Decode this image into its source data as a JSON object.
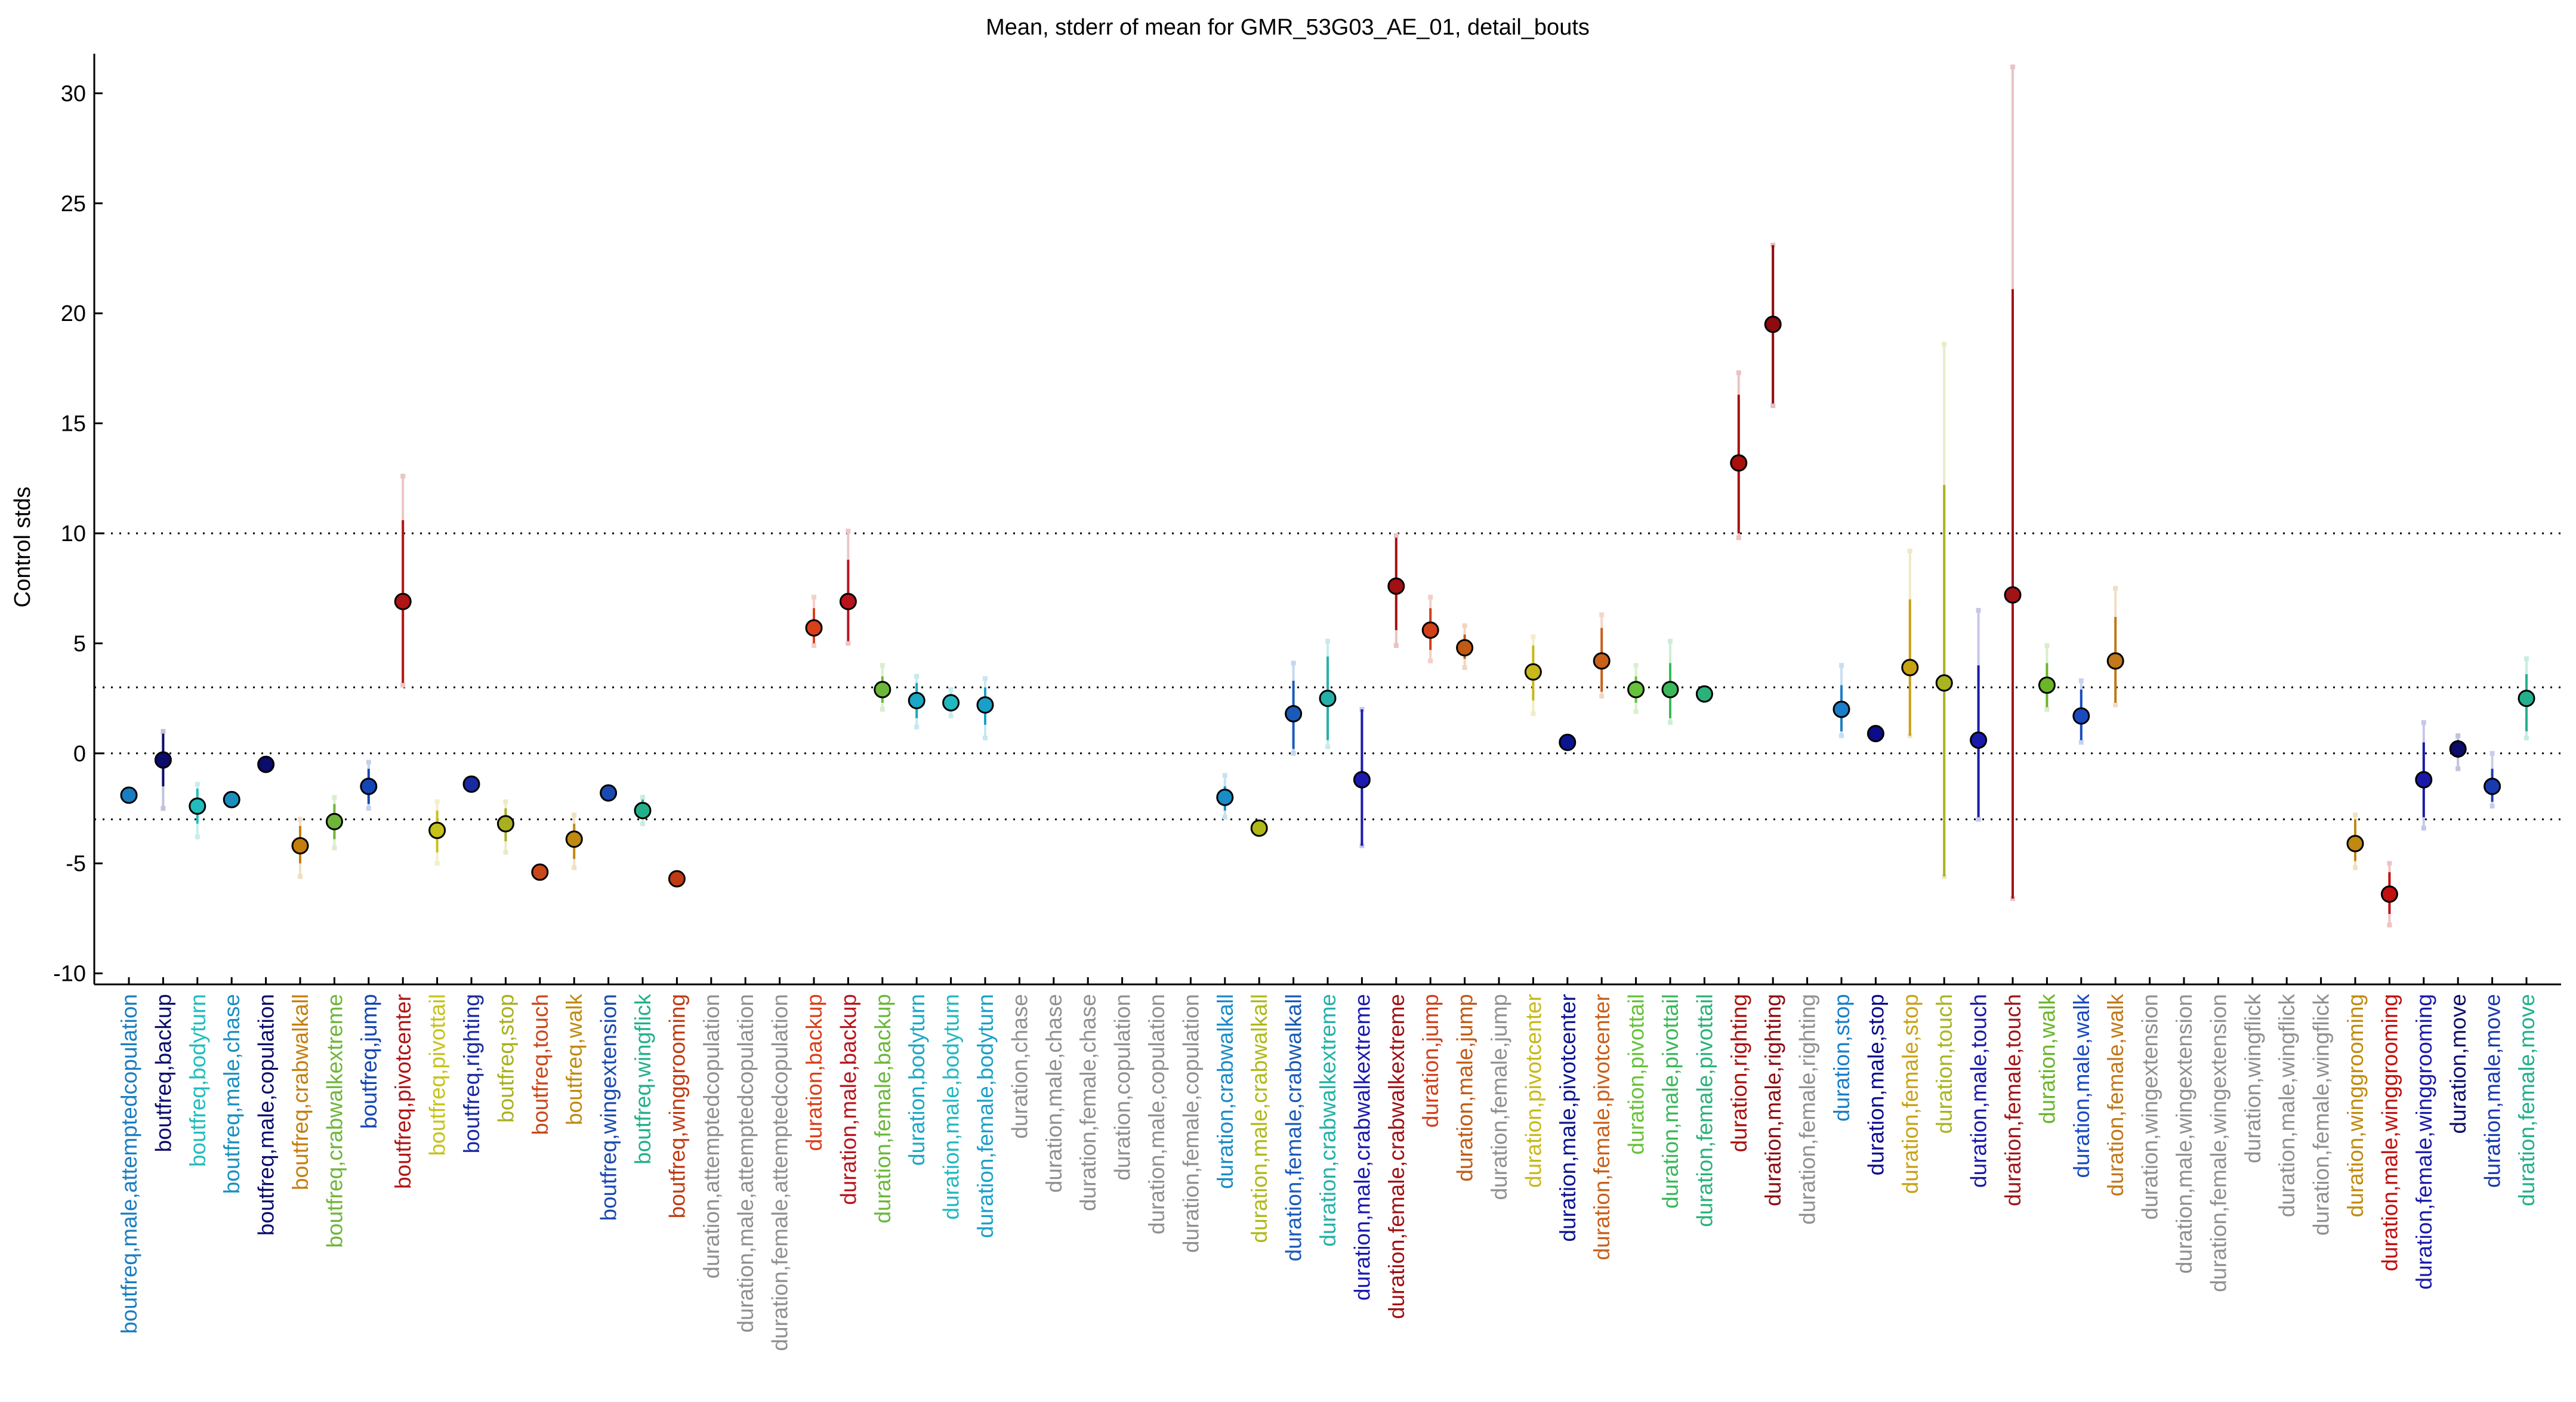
{
  "chart_data": {
    "type": "scatter",
    "title": "Mean, stderr of mean for GMR_53G03_AE_01, detail_bouts",
    "ylabel": "Control stds",
    "xlabel": "",
    "ylim": [
      -10.5,
      31.8
    ],
    "yticks": [
      -10,
      -5,
      0,
      5,
      10,
      15,
      20,
      25,
      30
    ],
    "reference_lines": [
      -3,
      0,
      3,
      10
    ],
    "grid": false,
    "points": [
      {
        "label": "boutfreq,male,attemptedcopulation",
        "color": "#1a7dc0",
        "mean": -1.9,
        "se_lo": -1.9,
        "se_hi": -1.9,
        "ci_lo": -1.9,
        "ci_hi": -1.9
      },
      {
        "label": "boutfreq,backup",
        "color": "#0b0c6b",
        "mean": -0.3,
        "se_lo": -1.5,
        "se_hi": 0.9,
        "ci_lo": -2.5,
        "ci_hi": 1.0
      },
      {
        "label": "boutfreq,bodyturn",
        "color": "#22bcbc",
        "mean": -2.4,
        "se_lo": -3.2,
        "se_hi": -1.6,
        "ci_lo": -3.8,
        "ci_hi": -1.4
      },
      {
        "label": "boutfreq,male,chase",
        "color": "#1a8fbf",
        "mean": -2.1,
        "se_lo": -2.1,
        "se_hi": -2.1,
        "ci_lo": -2.1,
        "ci_hi": -2.1
      },
      {
        "label": "boutfreq,male,copulation",
        "color": "#0b0c6b",
        "mean": -0.5,
        "se_lo": -0.5,
        "se_hi": -0.5,
        "ci_lo": -0.5,
        "ci_hi": -0.5
      },
      {
        "label": "boutfreq,crabwalkall",
        "color": "#c47e0e",
        "mean": -4.2,
        "se_lo": -5.0,
        "se_hi": -3.3,
        "ci_lo": -5.6,
        "ci_hi": -3.0
      },
      {
        "label": "boutfreq,crabwalkextreme",
        "color": "#6fb53a",
        "mean": -3.1,
        "se_lo": -3.9,
        "se_hi": -2.3,
        "ci_lo": -4.3,
        "ci_hi": -2.0
      },
      {
        "label": "boutfreq,jump",
        "color": "#1346b4",
        "mean": -1.5,
        "se_lo": -2.3,
        "se_hi": -0.7,
        "ci_lo": -2.5,
        "ci_hi": -0.4
      },
      {
        "label": "boutfreq,pivotcenter",
        "color": "#b01414",
        "mean": 6.9,
        "se_lo": 3.2,
        "se_hi": 10.6,
        "ci_lo": 3.1,
        "ci_hi": 12.6
      },
      {
        "label": "boutfreq,pivottail",
        "color": "#c7c21a",
        "mean": -3.5,
        "se_lo": -4.5,
        "se_hi": -2.6,
        "ci_lo": -5.0,
        "ci_hi": -2.2
      },
      {
        "label": "boutfreq,righting",
        "color": "#1a2aa0",
        "mean": -1.4,
        "se_lo": -1.4,
        "se_hi": -1.4,
        "ci_lo": -1.4,
        "ci_hi": -1.4
      },
      {
        "label": "boutfreq,stop",
        "color": "#a8b020",
        "mean": -3.2,
        "se_lo": -4.0,
        "se_hi": -2.5,
        "ci_lo": -4.5,
        "ci_hi": -2.2
      },
      {
        "label": "boutfreq,touch",
        "color": "#c8481a",
        "mean": -5.4,
        "se_lo": -5.4,
        "se_hi": -5.4,
        "ci_lo": -5.4,
        "ci_hi": -5.4
      },
      {
        "label": "boutfreq,walk",
        "color": "#c08a10",
        "mean": -3.9,
        "se_lo": -4.8,
        "se_hi": -3.2,
        "ci_lo": -5.2,
        "ci_hi": -2.8
      },
      {
        "label": "boutfreq,wingextension",
        "color": "#1a4ab0",
        "mean": -1.8,
        "se_lo": -1.8,
        "se_hi": -1.8,
        "ci_lo": -1.8,
        "ci_hi": -1.8
      },
      {
        "label": "boutfreq,wingflick",
        "color": "#22b08a",
        "mean": -2.6,
        "se_lo": -3.0,
        "se_hi": -2.1,
        "ci_lo": -3.2,
        "ci_hi": -2.0
      },
      {
        "label": "boutfreq,winggrooming",
        "color": "#c03a14",
        "mean": -5.7,
        "se_lo": -5.7,
        "se_hi": -5.7,
        "ci_lo": -5.7,
        "ci_hi": -5.7
      },
      {
        "label": "duration,attemptedcopulation",
        "color": "#909090"
      },
      {
        "label": "duration,male,attemptedcopulation",
        "color": "#909090"
      },
      {
        "label": "duration,female,attemptedcopulation",
        "color": "#909090"
      },
      {
        "label": "duration,backup",
        "color": "#d8401a",
        "mean": 5.7,
        "se_lo": 5.0,
        "se_hi": 6.6,
        "ci_lo": 4.9,
        "ci_hi": 7.1
      },
      {
        "label": "duration,male,backup",
        "color": "#b8141e",
        "mean": 6.9,
        "se_lo": 5.1,
        "se_hi": 8.8,
        "ci_lo": 5.0,
        "ci_hi": 10.1
      },
      {
        "label": "duration,female,backup",
        "color": "#6ab83a",
        "mean": 2.9,
        "se_lo": 2.3,
        "se_hi": 3.5,
        "ci_lo": 2.0,
        "ci_hi": 4.0
      },
      {
        "label": "duration,bodyturn",
        "color": "#1aa8c4",
        "mean": 2.4,
        "se_lo": 1.6,
        "se_hi": 3.2,
        "ci_lo": 1.2,
        "ci_hi": 3.5
      },
      {
        "label": "duration,male,bodyturn",
        "color": "#22b8c0",
        "mean": 2.3,
        "se_lo": 1.9,
        "se_hi": 2.7,
        "ci_lo": 1.7,
        "ci_hi": 2.9
      },
      {
        "label": "duration,female,bodyturn",
        "color": "#1aa0c8",
        "mean": 2.2,
        "se_lo": 1.3,
        "se_hi": 3.0,
        "ci_lo": 0.7,
        "ci_hi": 3.4
      },
      {
        "label": "duration,chase",
        "color": "#909090"
      },
      {
        "label": "duration,male,chase",
        "color": "#909090"
      },
      {
        "label": "duration,female,chase",
        "color": "#909090"
      },
      {
        "label": "duration,copulation",
        "color": "#909090"
      },
      {
        "label": "duration,male,copulation",
        "color": "#909090"
      },
      {
        "label": "duration,female,copulation",
        "color": "#909090"
      },
      {
        "label": "duration,crabwalkall",
        "color": "#1a8cc8",
        "mean": -2.0,
        "se_lo": -2.6,
        "se_hi": -1.5,
        "ci_lo": -2.9,
        "ci_hi": -1.0
      },
      {
        "label": "duration,male,crabwalkall",
        "color": "#b0b818",
        "mean": -3.4,
        "se_lo": -3.4,
        "se_hi": -3.4,
        "ci_lo": -3.4,
        "ci_hi": -3.4
      },
      {
        "label": "duration,female,crabwalkall",
        "color": "#1a5ab8",
        "mean": 1.8,
        "se_lo": 0.2,
        "se_hi": 3.3,
        "ci_lo": 0.0,
        "ci_hi": 4.1
      },
      {
        "label": "duration,crabwalkextreme",
        "color": "#22b0a8",
        "mean": 2.5,
        "se_lo": 0.6,
        "se_hi": 4.4,
        "ci_lo": 0.3,
        "ci_hi": 5.1
      },
      {
        "label": "duration,male,crabwalkextreme",
        "color": "#1a1ab0",
        "mean": -1.2,
        "se_lo": -4.2,
        "se_hi": 2.0,
        "ci_lo": -4.2,
        "ci_hi": 2.0
      },
      {
        "label": "duration,female,crabwalkextreme",
        "color": "#a01014",
        "mean": 7.6,
        "se_lo": 5.6,
        "se_hi": 9.8,
        "ci_lo": 4.9,
        "ci_hi": 9.9
      },
      {
        "label": "duration,jump",
        "color": "#d0401a",
        "mean": 5.6,
        "se_lo": 4.7,
        "se_hi": 6.6,
        "ci_lo": 4.2,
        "ci_hi": 7.1
      },
      {
        "label": "duration,male,jump",
        "color": "#c05a14",
        "mean": 4.8,
        "se_lo": 4.3,
        "se_hi": 5.4,
        "ci_lo": 3.9,
        "ci_hi": 5.8
      },
      {
        "label": "duration,female,jump",
        "color": "#909090"
      },
      {
        "label": "duration,pivotcenter",
        "color": "#c8b81a",
        "mean": 3.7,
        "se_lo": 2.4,
        "se_hi": 4.9,
        "ci_lo": 1.8,
        "ci_hi": 5.3
      },
      {
        "label": "duration,male,pivotcenter",
        "color": "#0c1490",
        "mean": 0.5,
        "se_lo": 0.5,
        "se_hi": 0.5,
        "ci_lo": 0.5,
        "ci_hi": 0.5
      },
      {
        "label": "duration,female,pivotcenter",
        "color": "#c8601a",
        "mean": 4.2,
        "se_lo": 2.8,
        "se_hi": 5.7,
        "ci_lo": 2.6,
        "ci_hi": 6.3
      },
      {
        "label": "duration,pivottail",
        "color": "#66c23a",
        "mean": 2.9,
        "se_lo": 2.3,
        "se_hi": 3.5,
        "ci_lo": 1.9,
        "ci_hi": 4.0
      },
      {
        "label": "duration,male,pivottail",
        "color": "#3ab85a",
        "mean": 2.9,
        "se_lo": 1.6,
        "se_hi": 4.1,
        "ci_lo": 1.4,
        "ci_hi": 5.1
      },
      {
        "label": "duration,female,pivottail",
        "color": "#2ab27a",
        "mean": 2.7,
        "se_lo": 2.7,
        "se_hi": 2.7,
        "ci_lo": 2.7,
        "ci_hi": 2.7
      },
      {
        "label": "duration,righting",
        "color": "#a8100e",
        "mean": 13.2,
        "se_lo": 10.0,
        "se_hi": 16.3,
        "ci_lo": 9.8,
        "ci_hi": 17.3
      },
      {
        "label": "duration,male,righting",
        "color": "#8c0c10",
        "mean": 19.5,
        "se_lo": 15.9,
        "se_hi": 23.1,
        "ci_lo": 15.8,
        "ci_hi": 23.1
      },
      {
        "label": "duration,female,righting",
        "color": "#909090"
      },
      {
        "label": "duration,stop",
        "color": "#1a7ec8",
        "mean": 2.0,
        "se_lo": 1.0,
        "se_hi": 3.1,
        "ci_lo": 0.8,
        "ci_hi": 4.0
      },
      {
        "label": "duration,male,stop",
        "color": "#0c0c8a",
        "mean": 0.9,
        "se_lo": 0.9,
        "se_hi": 0.9,
        "ci_lo": 0.9,
        "ci_hi": 0.9
      },
      {
        "label": "duration,female,stop",
        "color": "#c8a214",
        "mean": 3.9,
        "se_lo": 0.8,
        "se_hi": 7.0,
        "ci_lo": 0.8,
        "ci_hi": 9.2
      },
      {
        "label": "duration,touch",
        "color": "#a8b422",
        "mean": 3.2,
        "se_lo": -5.6,
        "se_hi": 12.2,
        "ci_lo": -5.6,
        "ci_hi": 18.6
      },
      {
        "label": "duration,male,touch",
        "color": "#1a1aa8",
        "mean": 0.6,
        "se_lo": -2.9,
        "se_hi": 4.0,
        "ci_lo": -3.0,
        "ci_hi": 6.5
      },
      {
        "label": "duration,female,touch",
        "color": "#a01418",
        "mean": 7.2,
        "se_lo": -6.6,
        "se_hi": 21.1,
        "ci_lo": -6.6,
        "ci_hi": 31.2
      },
      {
        "label": "duration,walk",
        "color": "#6ab62a",
        "mean": 3.1,
        "se_lo": 2.1,
        "se_hi": 4.1,
        "ci_lo": 2.0,
        "ci_hi": 4.9
      },
      {
        "label": "duration,male,walk",
        "color": "#1a4ac0",
        "mean": 1.7,
        "se_lo": 0.6,
        "se_hi": 2.9,
        "ci_lo": 0.5,
        "ci_hi": 3.3
      },
      {
        "label": "duration,female,walk",
        "color": "#c0781a",
        "mean": 4.2,
        "se_lo": 2.3,
        "se_hi": 6.2,
        "ci_lo": 2.2,
        "ci_hi": 7.5
      },
      {
        "label": "duration,wingextension",
        "color": "#909090"
      },
      {
        "label": "duration,male,wingextension",
        "color": "#909090"
      },
      {
        "label": "duration,female,wingextension",
        "color": "#909090"
      },
      {
        "label": "duration,wingflick",
        "color": "#909090"
      },
      {
        "label": "duration,male,wingflick",
        "color": "#909090"
      },
      {
        "label": "duration,female,wingflick",
        "color": "#909090"
      },
      {
        "label": "duration,winggrooming",
        "color": "#c08a10",
        "mean": -4.1,
        "se_lo": -4.9,
        "se_hi": -3.0,
        "ci_lo": -5.2,
        "ci_hi": -2.8
      },
      {
        "label": "duration,male,winggrooming",
        "color": "#c01010",
        "mean": -6.4,
        "se_lo": -7.3,
        "se_hi": -5.4,
        "ci_lo": -7.8,
        "ci_hi": -5.0
      },
      {
        "label": "duration,female,winggrooming",
        "color": "#1a1aa8",
        "mean": -1.2,
        "se_lo": -2.9,
        "se_hi": 0.5,
        "ci_lo": -3.4,
        "ci_hi": 1.4
      },
      {
        "label": "duration,move",
        "color": "#0c0c6a",
        "mean": 0.2,
        "se_lo": -0.2,
        "se_hi": 0.6,
        "ci_lo": -0.7,
        "ci_hi": 0.8
      },
      {
        "label": "duration,male,move",
        "color": "#1a3ab0",
        "mean": -1.5,
        "se_lo": -2.2,
        "se_hi": -0.7,
        "ci_lo": -2.4,
        "ci_hi": 0.0
      },
      {
        "label": "duration,female,move",
        "color": "#22b08c",
        "mean": 2.5,
        "se_lo": 1.0,
        "se_hi": 3.6,
        "ci_lo": 0.7,
        "ci_hi": 4.3
      }
    ]
  }
}
